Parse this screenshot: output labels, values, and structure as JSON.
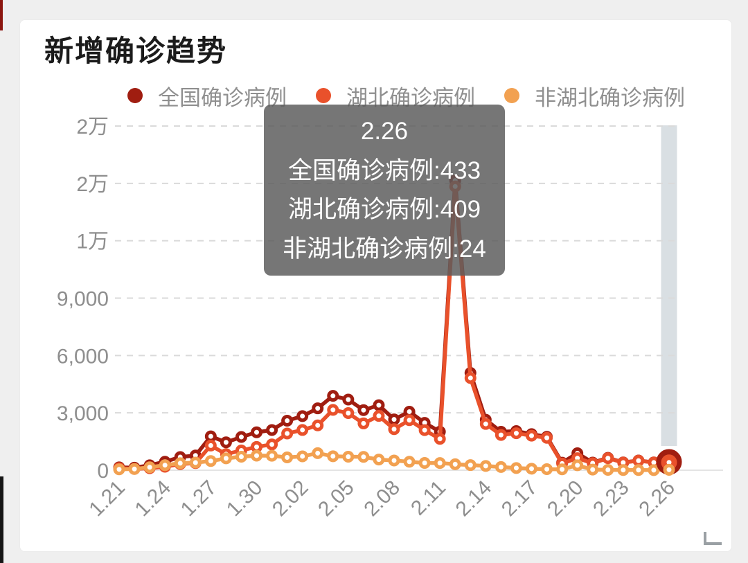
{
  "header": {
    "title": "新增确诊趋势"
  },
  "legend": {
    "items": [
      {
        "label": "全国确诊病例",
        "color": "#a01d10"
      },
      {
        "label": "湖北确诊病例",
        "color": "#e9512b"
      },
      {
        "label": "非湖北确诊病例",
        "color": "#f2a151"
      }
    ]
  },
  "tooltip": {
    "date": "2.26",
    "lines": [
      "2.26",
      "全国确诊病例:433",
      "湖北确诊病例:409",
      "非湖北确诊病例:24"
    ],
    "background": "#5c5c5c"
  },
  "chart_data": {
    "type": "line",
    "title": "新增确诊趋势",
    "x": [
      "1.21",
      "1.22",
      "1.23",
      "1.24",
      "1.25",
      "1.26",
      "1.27",
      "1.28",
      "1.29",
      "1.30",
      "1.31",
      "2.01",
      "2.02",
      "2.03",
      "2.04",
      "2.05",
      "2.06",
      "2.07",
      "2.08",
      "2.09",
      "2.10",
      "2.11",
      "2.12",
      "2.13",
      "2.14",
      "2.15",
      "2.16",
      "2.17",
      "2.18",
      "2.19",
      "2.20",
      "2.21",
      "2.22",
      "2.23",
      "2.24",
      "2.25",
      "2.26"
    ],
    "x_tick_labels": [
      {
        "label": "1.21",
        "index": 0
      },
      {
        "label": "1.24",
        "index": 3
      },
      {
        "label": "1.27",
        "index": 6
      },
      {
        "label": "1.30",
        "index": 9
      },
      {
        "label": "2.02",
        "index": 12
      },
      {
        "label": "2.05",
        "index": 15
      },
      {
        "label": "2.08",
        "index": 18
      },
      {
        "label": "2.11",
        "index": 21
      },
      {
        "label": "2.14",
        "index": 24
      },
      {
        "label": "2.17",
        "index": 27
      },
      {
        "label": "2.20",
        "index": 30
      },
      {
        "label": "2.23",
        "index": 33
      },
      {
        "label": "2.26",
        "index": 36
      }
    ],
    "y_tick_labels": [
      "0",
      "3,000",
      "6,000",
      "9,000",
      "1万",
      "2万",
      "2万"
    ],
    "ylim": [
      0,
      18000
    ],
    "y_interval": 3000,
    "grid": "horizontal-dashed",
    "legend_position": "top",
    "series": [
      {
        "name": "全国确诊病例",
        "color": "#a01d10",
        "values": [
          149,
          131,
          259,
          444,
          688,
          769,
          1771,
          1459,
          1737,
          1982,
          2102,
          2590,
          2829,
          3235,
          3887,
          3694,
          3143,
          3399,
          2656,
          3062,
          2478,
          2015,
          15152,
          5090,
          2641,
          2009,
          2048,
          1886,
          1749,
          394,
          889,
          397,
          648,
          409,
          508,
          406,
          433
        ]
      },
      {
        "name": "湖北确诊病例",
        "color": "#e9512b",
        "values": [
          105,
          69,
          105,
          180,
          323,
          371,
          1291,
          840,
          1032,
          1220,
          1347,
          1921,
          2103,
          2345,
          3156,
          2987,
          2447,
          2841,
          2147,
          2618,
          2097,
          1638,
          14840,
          4823,
          2420,
          1843,
          1933,
          1807,
          1693,
          349,
          631,
          366,
          630,
          398,
          499,
          401,
          409
        ]
      },
      {
        "name": "非湖北确诊病例",
        "color": "#f2a151",
        "values": [
          44,
          62,
          154,
          264,
          365,
          398,
          480,
          619,
          705,
          762,
          755,
          669,
          726,
          890,
          731,
          707,
          696,
          558,
          509,
          444,
          381,
          377,
          312,
          267,
          221,
          166,
          115,
          79,
          56,
          45,
          258,
          31,
          18,
          11,
          9,
          5,
          24
        ]
      }
    ],
    "highlighted_x": "2.26",
    "highlight_bar_color": "#d9dfe3",
    "gridline_color": "#dadada",
    "axis_label_color": "#8e8e8e"
  }
}
